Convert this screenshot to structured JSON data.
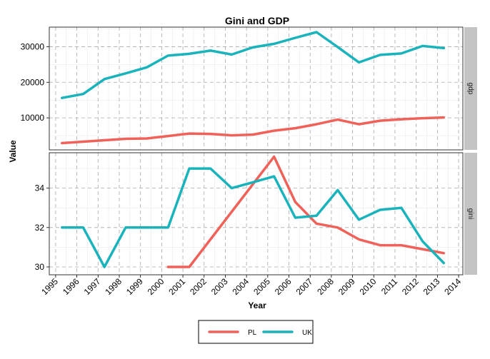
{
  "chart_data": {
    "type": "line",
    "title": "Gini and GDP",
    "xlabel": "Year",
    "ylabel": "Value",
    "xlim": [
      1994.7,
      2014.2
    ],
    "x_ticks": [
      "1995",
      "1996",
      "1997",
      "1998",
      "1999",
      "2000",
      "2001",
      "2002",
      "2003",
      "2004",
      "2005",
      "2006",
      "2007",
      "2008",
      "2009",
      "2010",
      "2011",
      "2012",
      "2013",
      "2014"
    ],
    "legend": {
      "position": "bottom",
      "entries": [
        "PL",
        "UK"
      ]
    },
    "colors": {
      "PL": "#ef6159",
      "UK": "#1ab3bb",
      "strip": "#c4c4c4",
      "grid": "#a8a8a8"
    },
    "panels": [
      {
        "name": "gdp",
        "ylim": [
          1000,
          35500
        ],
        "y_ticks": [
          10000,
          20000,
          30000
        ],
        "y_tick_labels": [
          "10000",
          "20000",
          "30000"
        ],
        "series": [
          {
            "name": "PL",
            "x": [
              1995.3,
              1996.3,
              1997.3,
              1998.3,
              1999.3,
              2000.3,
              2001.3,
              2002.3,
              2003.3,
              2004.3,
              2005.3,
              2006.3,
              2007.3,
              2008.3,
              2009.3,
              2010.3,
              2011.3,
              2012.3,
              2013.3
            ],
            "values": [
              2900,
              3300,
              3700,
              4100,
              4200,
              4900,
              5600,
              5500,
              5100,
              5300,
              6400,
              7100,
              8200,
              9500,
              8200,
              9200,
              9600,
              9900,
              10100
            ]
          },
          {
            "name": "UK",
            "x": [
              1995.3,
              1996.3,
              1997.3,
              1998.3,
              1999.3,
              2000.3,
              2001.3,
              2002.3,
              2003.3,
              2004.3,
              2005.3,
              2006.3,
              2007.3,
              2008.3,
              2009.3,
              2010.3,
              2011.3,
              2012.3,
              2013.3
            ],
            "values": [
              15600,
              16700,
              20900,
              22500,
              24200,
              27500,
              28000,
              28900,
              27800,
              29800,
              30800,
              32500,
              34100,
              29900,
              25600,
              27700,
              28100,
              30200,
              29600
            ]
          }
        ]
      },
      {
        "name": "gini",
        "ylim": [
          29.6,
          35.8
        ],
        "y_ticks": [
          30,
          32,
          34
        ],
        "y_tick_labels": [
          "30",
          "32",
          "34"
        ],
        "series": [
          {
            "name": "PL",
            "x": [
              2000.3,
              2001.3,
              2005.3,
              2006.3,
              2007.3,
              2008.3,
              2009.3,
              2010.3,
              2011.3,
              2012.3,
              2013.3
            ],
            "values": [
              30.0,
              30.0,
              35.6,
              33.3,
              32.2,
              32.0,
              31.4,
              31.1,
              31.1,
              30.9,
              30.7
            ]
          },
          {
            "name": "UK",
            "x": [
              1995.3,
              1996.3,
              1997.3,
              1998.3,
              1999.3,
              2000.3,
              2001.3,
              2002.3,
              2003.3,
              2004.3,
              2005.3,
              2006.3,
              2007.3,
              2008.3,
              2009.3,
              2010.3,
              2011.3,
              2012.3,
              2013.3
            ],
            "values": [
              32.0,
              32.0,
              30.0,
              32.0,
              32.0,
              32.0,
              35.0,
              35.0,
              34.0,
              34.3,
              34.6,
              32.5,
              32.6,
              33.9,
              32.4,
              32.9,
              33.0,
              31.3,
              30.2
            ]
          }
        ]
      }
    ]
  }
}
